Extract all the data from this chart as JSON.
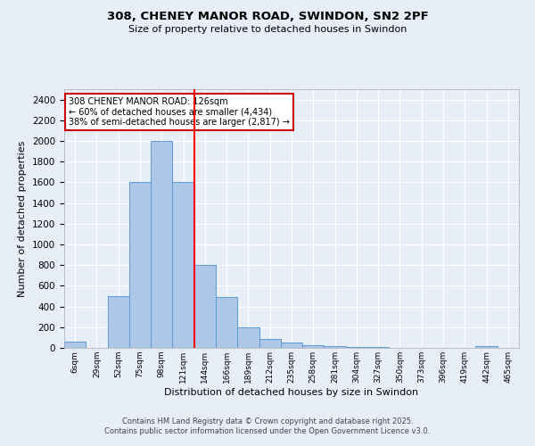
{
  "title": "308, CHENEY MANOR ROAD, SWINDON, SN2 2PF",
  "subtitle": "Size of property relative to detached houses in Swindon",
  "xlabel": "Distribution of detached houses by size in Swindon",
  "ylabel": "Number of detached properties",
  "bar_labels": [
    "6sqm",
    "29sqm",
    "52sqm",
    "75sqm",
    "98sqm",
    "121sqm",
    "144sqm",
    "166sqm",
    "189sqm",
    "212sqm",
    "235sqm",
    "258sqm",
    "281sqm",
    "304sqm",
    "327sqm",
    "350sqm",
    "373sqm",
    "396sqm",
    "419sqm",
    "442sqm",
    "465sqm"
  ],
  "bar_values": [
    60,
    0,
    500,
    1600,
    2000,
    1600,
    800,
    490,
    200,
    90,
    50,
    30,
    15,
    10,
    5,
    0,
    0,
    0,
    0,
    20,
    0
  ],
  "bar_color": "#aec6e8",
  "bar_edge_color": "#5b9bd5",
  "background_color": "#e8eef8",
  "grid_color": "#ffffff",
  "red_line_x": 5.5,
  "annotation_text": "308 CHENEY MANOR ROAD: 126sqm\n← 60% of detached houses are smaller (4,434)\n38% of semi-detached houses are larger (2,817) →",
  "annotation_box_color": "#ffffff",
  "annotation_box_edge_color": "#cc0000",
  "ylim": [
    0,
    2500
  ],
  "yticks": [
    0,
    200,
    400,
    600,
    800,
    1000,
    1200,
    1400,
    1600,
    1800,
    2000,
    2200,
    2400
  ],
  "footer_line1": "Contains HM Land Registry data © Crown copyright and database right 2025.",
  "footer_line2": "Contains public sector information licensed under the Open Government Licence v3.0."
}
